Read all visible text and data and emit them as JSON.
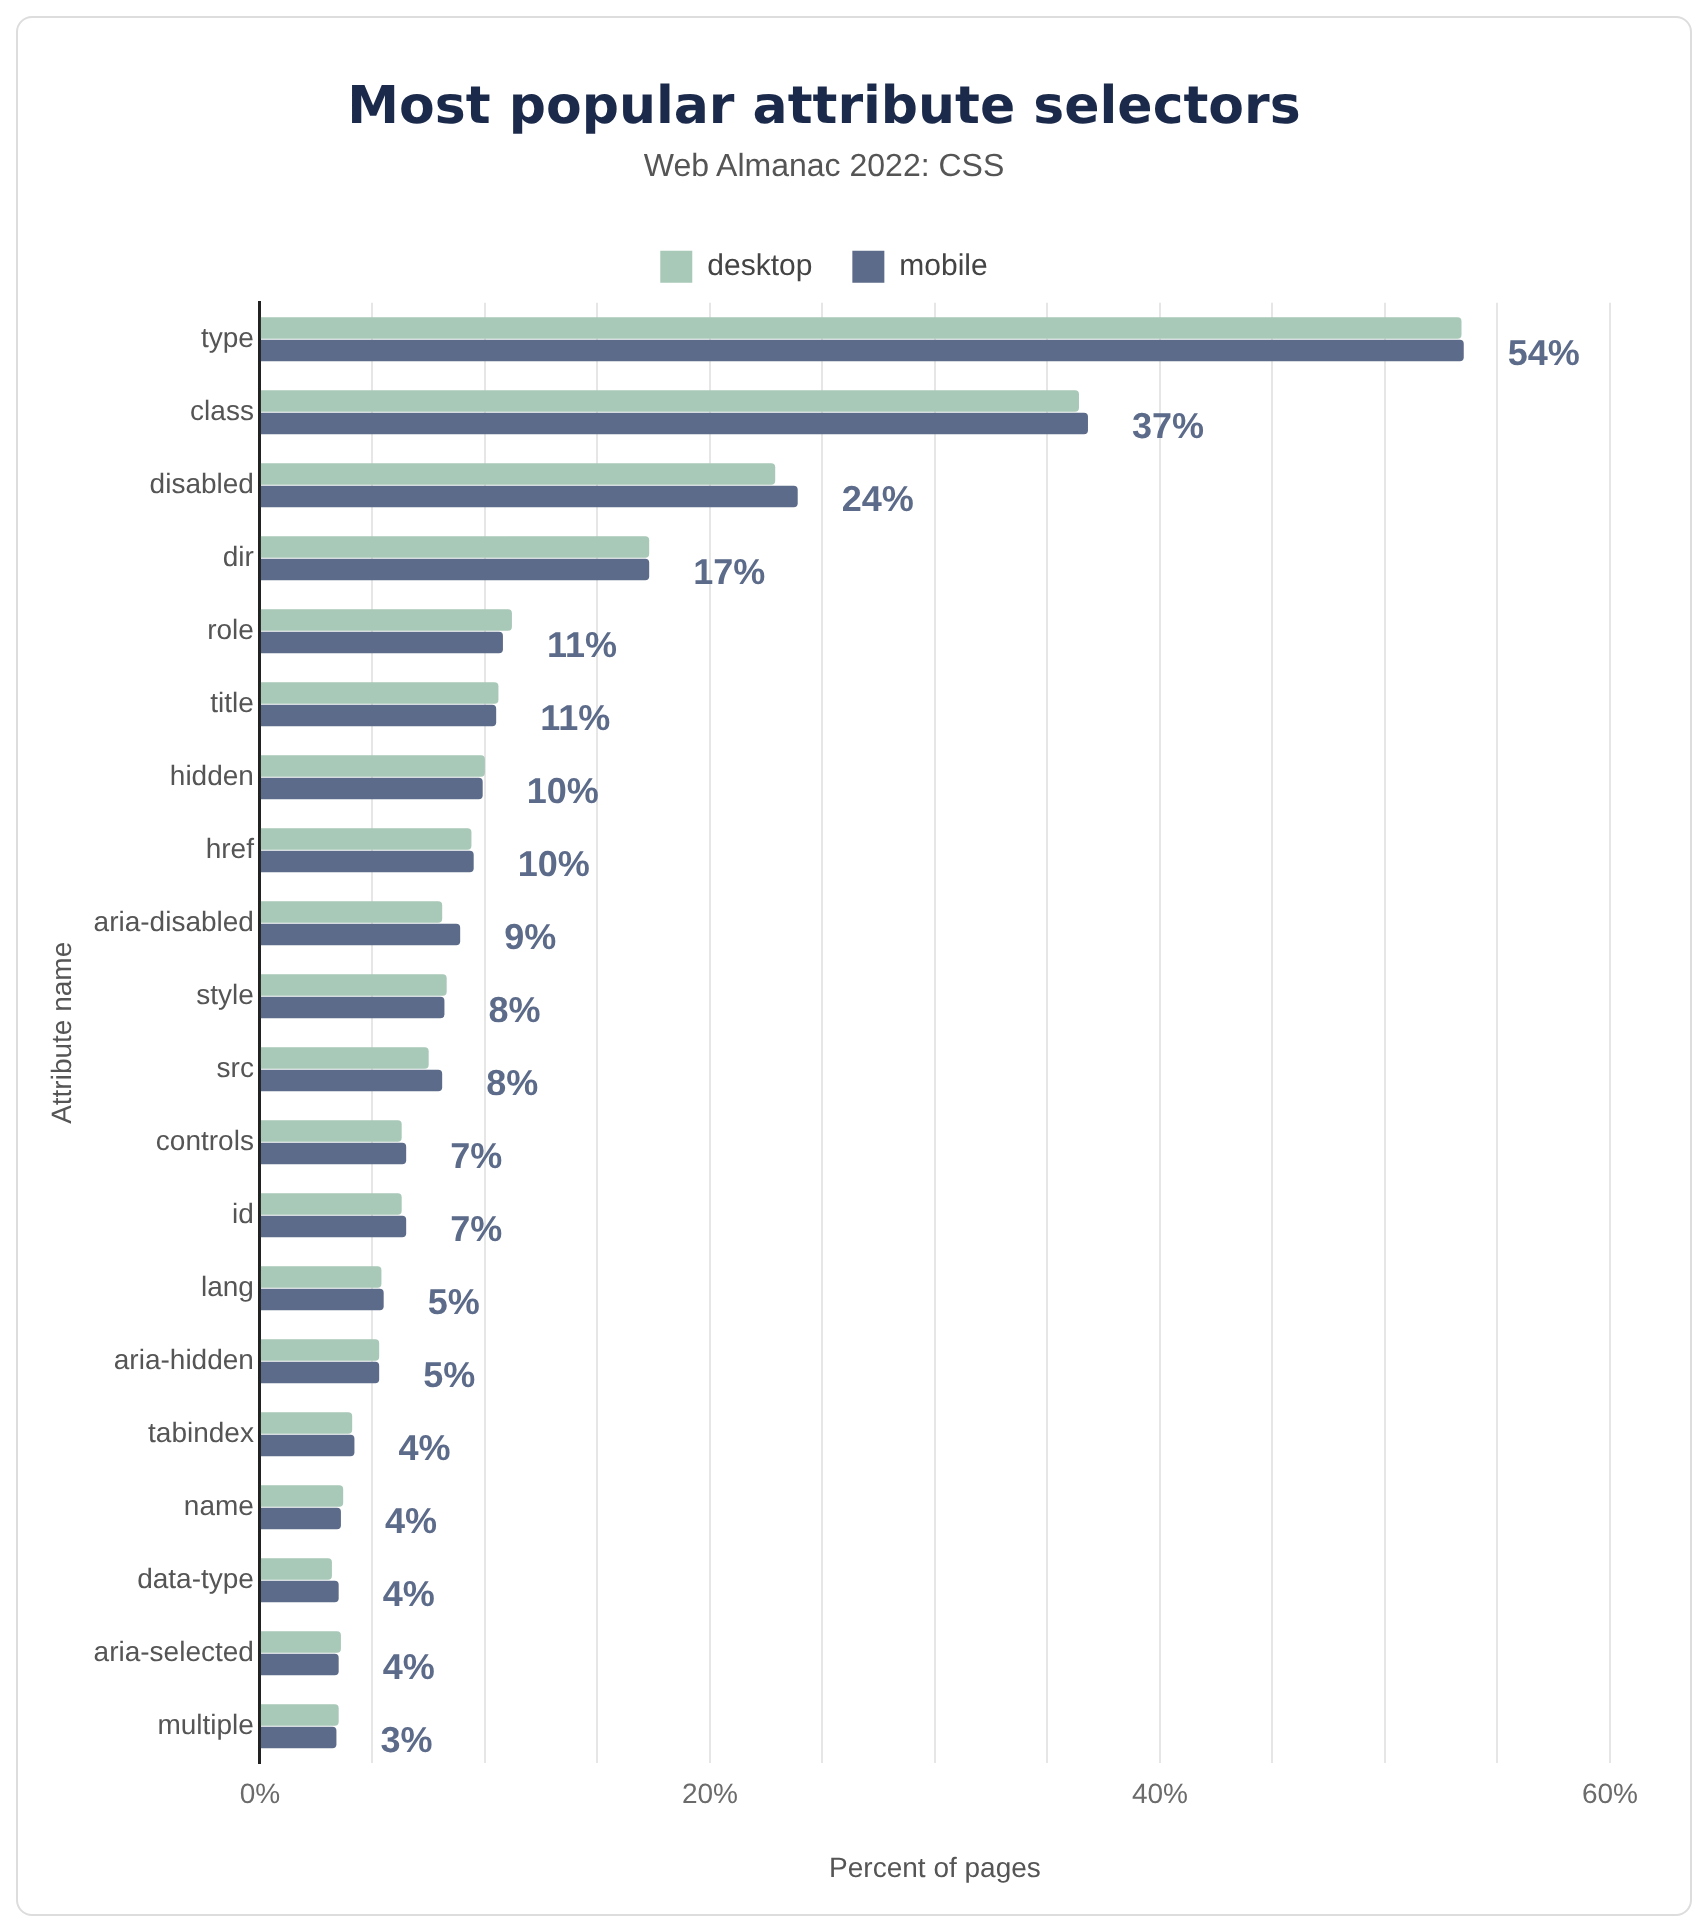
{
  "chart_data": {
    "type": "bar",
    "orientation": "horizontal",
    "title": "Most popular attribute selectors",
    "subtitle": "Web Almanac 2022: CSS",
    "xlabel": "Percent of pages",
    "ylabel": "Attribute name",
    "categories": [
      "type",
      "class",
      "disabled",
      "dir",
      "role",
      "title",
      "hidden",
      "href",
      "aria-disabled",
      "style",
      "src",
      "controls",
      "id",
      "lang",
      "aria-hidden",
      "tabindex",
      "name",
      "data-type",
      "aria-selected",
      "multiple"
    ],
    "series": [
      {
        "name": "desktop",
        "color": "#a8c8b8",
        "values": [
          53.4,
          36.4,
          22.9,
          17.3,
          11.2,
          10.6,
          10.0,
          9.4,
          8.1,
          8.3,
          7.5,
          6.3,
          6.3,
          5.4,
          5.3,
          4.1,
          3.7,
          3.2,
          3.6,
          3.5
        ]
      },
      {
        "name": "mobile",
        "color": "#5c6b89",
        "values": [
          53.5,
          36.8,
          23.9,
          17.3,
          10.8,
          10.5,
          9.9,
          9.5,
          8.9,
          8.2,
          8.1,
          6.5,
          6.5,
          5.5,
          5.3,
          4.2,
          3.6,
          3.5,
          3.5,
          3.4
        ],
        "value_labels": [
          "54%",
          "37%",
          "24%",
          "17%",
          "11%",
          "11%",
          "10%",
          "10%",
          "9%",
          "8%",
          "8%",
          "7%",
          "7%",
          "5%",
          "5%",
          "4%",
          "4%",
          "4%",
          "4%",
          "3%"
        ]
      }
    ],
    "xlim": [
      0,
      60
    ],
    "xticks": [
      {
        "value": 0,
        "label": "0%"
      },
      {
        "value": 5,
        "label": null
      },
      {
        "value": 10,
        "label": null
      },
      {
        "value": 15,
        "label": null
      },
      {
        "value": 20,
        "label": "20%"
      },
      {
        "value": 25,
        "label": null
      },
      {
        "value": 30,
        "label": null
      },
      {
        "value": 35,
        "label": null
      },
      {
        "value": 40,
        "label": "40%"
      },
      {
        "value": 45,
        "label": null
      },
      {
        "value": 50,
        "label": null
      },
      {
        "value": 55,
        "label": null
      },
      {
        "value": 60,
        "label": "60%"
      }
    ],
    "grid": "x",
    "legend": "top"
  }
}
